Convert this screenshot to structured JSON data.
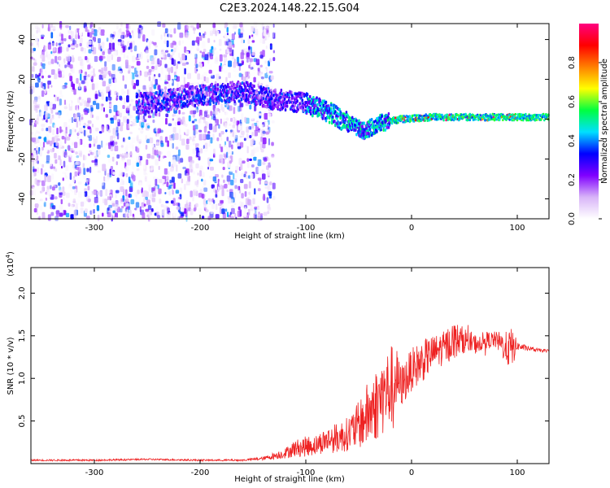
{
  "chart_data": [
    {
      "type": "heatmap",
      "title": "C2E3.2024.148.22.15.G04",
      "xlabel": "Height of straight line (km)",
      "ylabel": "Frequency (Hz)",
      "xlim": [
        -360,
        130
      ],
      "ylim": [
        -50,
        48
      ],
      "xticks": [
        -300,
        -200,
        -100,
        0,
        100
      ],
      "yticks": [
        -40,
        -20,
        0,
        20,
        40
      ],
      "colorbar": {
        "label": "Normalized spectral amplitude",
        "range": [
          0,
          1
        ],
        "ticks": [
          "0.0",
          "0.2",
          "0.4",
          "0.6",
          "0.8"
        ],
        "colors": [
          "#ffffff",
          "#d8b4f8",
          "#8000ff",
          "#0000ff",
          "#00e0ff",
          "#00ff40",
          "#ffff00",
          "#ff8000",
          "#ff0000",
          "#ff0080"
        ]
      },
      "ridge": {
        "description_points": [
          {
            "x": -250,
            "y": 8
          },
          {
            "x": -200,
            "y": 12
          },
          {
            "x": -160,
            "y": 14
          },
          {
            "x": -130,
            "y": 10
          },
          {
            "x": -100,
            "y": 8
          },
          {
            "x": -80,
            "y": 4
          },
          {
            "x": -60,
            "y": -2
          },
          {
            "x": -45,
            "y": -6
          },
          {
            "x": -30,
            "y": -2
          },
          {
            "x": -10,
            "y": 0
          },
          {
            "x": 20,
            "y": 1
          },
          {
            "x": 60,
            "y": 1
          },
          {
            "x": 100,
            "y": 1
          },
          {
            "x": 130,
            "y": 1
          }
        ]
      },
      "noise_region_xmax": -130,
      "grid": false
    },
    {
      "type": "line",
      "xlabel": "Height of straight line (km)",
      "ylabel": "SNR (10 * v/v)",
      "multiplier_label": "(x10",
      "multiplier_exp": "4",
      "xlim": [
        -360,
        130
      ],
      "ylim": [
        0,
        2.3
      ],
      "xticks": [
        -300,
        -200,
        -100,
        0,
        100
      ],
      "yticks": [
        0.5,
        1.0,
        1.5,
        2.0
      ],
      "ytick_labels": [
        "0.5",
        "1.0",
        "1.5",
        "2.0"
      ],
      "color": "#ee2222",
      "series": [
        {
          "x": [
            -360,
            -300,
            -250,
            -200,
            -160,
            -140,
            -120,
            -110,
            -100,
            -90,
            -80,
            -70,
            -60,
            -50,
            -40,
            -30,
            -20,
            -15,
            -10,
            0,
            10,
            20,
            30,
            40,
            50,
            60,
            70,
            80,
            90,
            95,
            100,
            110,
            120,
            130
          ],
          "y": [
            0.04,
            0.04,
            0.05,
            0.04,
            0.04,
            0.06,
            0.12,
            0.18,
            0.2,
            0.22,
            0.28,
            0.3,
            0.35,
            0.45,
            0.6,
            0.75,
            0.9,
            1.0,
            0.9,
            1.1,
            1.2,
            1.3,
            1.35,
            1.45,
            1.45,
            1.4,
            1.45,
            1.45,
            1.35,
            1.35,
            1.38,
            1.35,
            1.33,
            1.32
          ],
          "noise_amp": [
            0.01,
            0.01,
            0.01,
            0.01,
            0.01,
            0.02,
            0.06,
            0.1,
            0.12,
            0.12,
            0.15,
            0.18,
            0.2,
            0.28,
            0.4,
            0.45,
            0.5,
            0.4,
            0.25,
            0.25,
            0.25,
            0.2,
            0.2,
            0.22,
            0.15,
            0.12,
            0.1,
            0.1,
            0.2,
            0.25,
            0.05,
            0.03,
            0.02,
            0.02
          ]
        }
      ]
    }
  ]
}
